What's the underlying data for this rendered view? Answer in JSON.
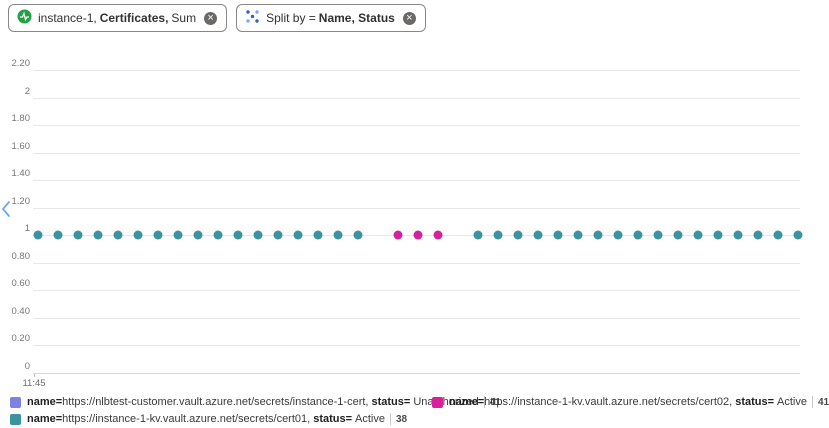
{
  "chips": {
    "metric": {
      "prefix": "instance-1,",
      "bold": "Certificates,",
      "suffix": "Sum"
    },
    "split_by": {
      "prefix": "Split by =",
      "bold": "Name, Status"
    }
  },
  "colors": {
    "teal_series": "#3A939E",
    "magenta_series": "#D6219C",
    "blue_series": "#7B82E4",
    "chip_icon_green": "#23A047",
    "chevron_blue": "#6CA9EC"
  },
  "chart_data": {
    "type": "scatter",
    "title": "",
    "xlabel": "",
    "ylabel": "",
    "grid": true,
    "legend_position": "bottom",
    "ylim": [
      0,
      2.2
    ],
    "x_first_tick": "11:45",
    "y_ticks": [
      {
        "label": "2.20",
        "value": 2.2
      },
      {
        "label": "2",
        "value": 2.0
      },
      {
        "label": "1.80",
        "value": 1.8
      },
      {
        "label": "1.60",
        "value": 1.6
      },
      {
        "label": "1.40",
        "value": 1.4
      },
      {
        "label": "1.20",
        "value": 1.2
      },
      {
        "label": "1",
        "value": 1.0
      },
      {
        "label": "0.80",
        "value": 0.8
      },
      {
        "label": "0.60",
        "value": 0.6
      },
      {
        "label": "0.40",
        "value": 0.4
      },
      {
        "label": "0.20",
        "value": 0.2
      },
      {
        "label": "0",
        "value": 0
      }
    ],
    "series": [
      {
        "name": "name=https://nlbtest-customer.vault.azure.net/secrets/instance-1-cert, status= Unauthorized",
        "color": "#7B82E4",
        "sum": 41,
        "y_value": 1,
        "slots": []
      },
      {
        "name": "name=https://instance-1-kv.vault.azure.net/secrets/cert02, status= Active",
        "color": "#D6219C",
        "sum": 41,
        "y_value": 1,
        "slots": [
          18,
          19,
          20
        ]
      },
      {
        "name": "name=https://instance-1-kv.vault.azure.net/secrets/cert01, status= Active",
        "color": "#3A939E",
        "sum": 38,
        "y_value": 1,
        "slots": [
          0,
          1,
          2,
          3,
          4,
          5,
          6,
          7,
          8,
          9,
          10,
          11,
          12,
          13,
          14,
          15,
          16,
          22,
          23,
          24,
          25,
          26,
          27,
          28,
          29,
          30,
          31,
          32,
          33,
          34,
          35,
          36,
          37,
          38
        ]
      }
    ]
  },
  "legend": {
    "entries": [
      {
        "color": "#7B82E4",
        "name_label": "name=",
        "url": "https://nlbtest-customer.vault.azure.net/secrets/instance-1-cert,",
        "status_label": "status=",
        "status": "Unauthorized",
        "count": "41"
      },
      {
        "color": "#D6219C",
        "name_label": "name=",
        "url": "https://instance-1-kv.vault.azure.net/secrets/cert02,",
        "status_label": "status=",
        "status": "Active",
        "count": "41"
      },
      {
        "color": "#3A939E",
        "name_label": "name=",
        "url": "https://instance-1-kv.vault.azure.net/secrets/cert01,",
        "status_label": "status=",
        "status": "Active",
        "count": "38"
      }
    ]
  }
}
